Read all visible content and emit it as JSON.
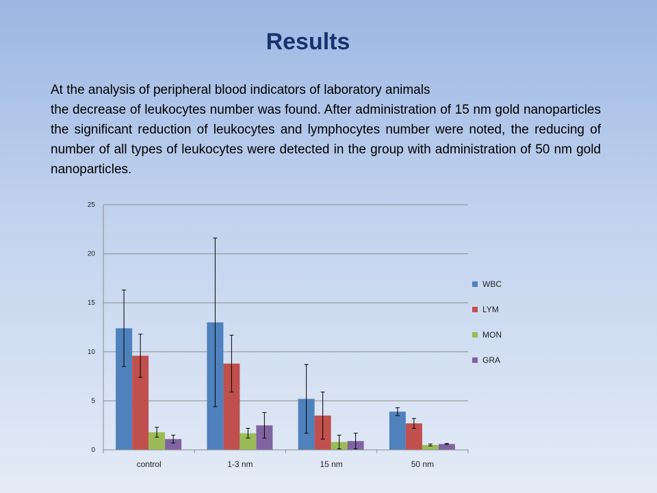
{
  "slide": {
    "title": "Results",
    "paragraph1": "At the analysis of peripheral blood indicators of laboratory animals",
    "paragraph2": " the decrease of leukocytes number was found. After administration of 15 nm gold nanoparticles the significant reduction of leukocytes and lymphocytes number were noted, the reducing of number of all types of leukocytes were detected in the group with administration of 50 nm gold nanoparticles."
  },
  "chart_data": {
    "type": "bar",
    "title": "",
    "xlabel": "",
    "ylabel": "",
    "ylim": [
      0,
      25
    ],
    "yticks": [
      0,
      5,
      10,
      15,
      20,
      25
    ],
    "grid": true,
    "legend": "right",
    "categories": [
      "control",
      "1-3 nm",
      "15 nm",
      "50 nm"
    ],
    "series": [
      {
        "name": "WBC",
        "color": "#4f81bd",
        "values": [
          12.4,
          13.0,
          5.2,
          3.9
        ],
        "errors": [
          3.9,
          8.6,
          3.5,
          0.4
        ]
      },
      {
        "name": "LYM",
        "color": "#c0504d",
        "values": [
          9.6,
          8.8,
          3.5,
          2.7
        ],
        "errors": [
          2.2,
          2.9,
          2.4,
          0.5
        ]
      },
      {
        "name": "MON",
        "color": "#9bbb59",
        "values": [
          1.8,
          1.7,
          0.8,
          0.5
        ],
        "errors": [
          0.5,
          0.5,
          0.7,
          0.1
        ]
      },
      {
        "name": "GRA",
        "color": "#8064a2",
        "values": [
          1.1,
          2.5,
          0.9,
          0.6
        ],
        "errors": [
          0.4,
          1.3,
          0.8,
          0.05
        ]
      }
    ]
  }
}
